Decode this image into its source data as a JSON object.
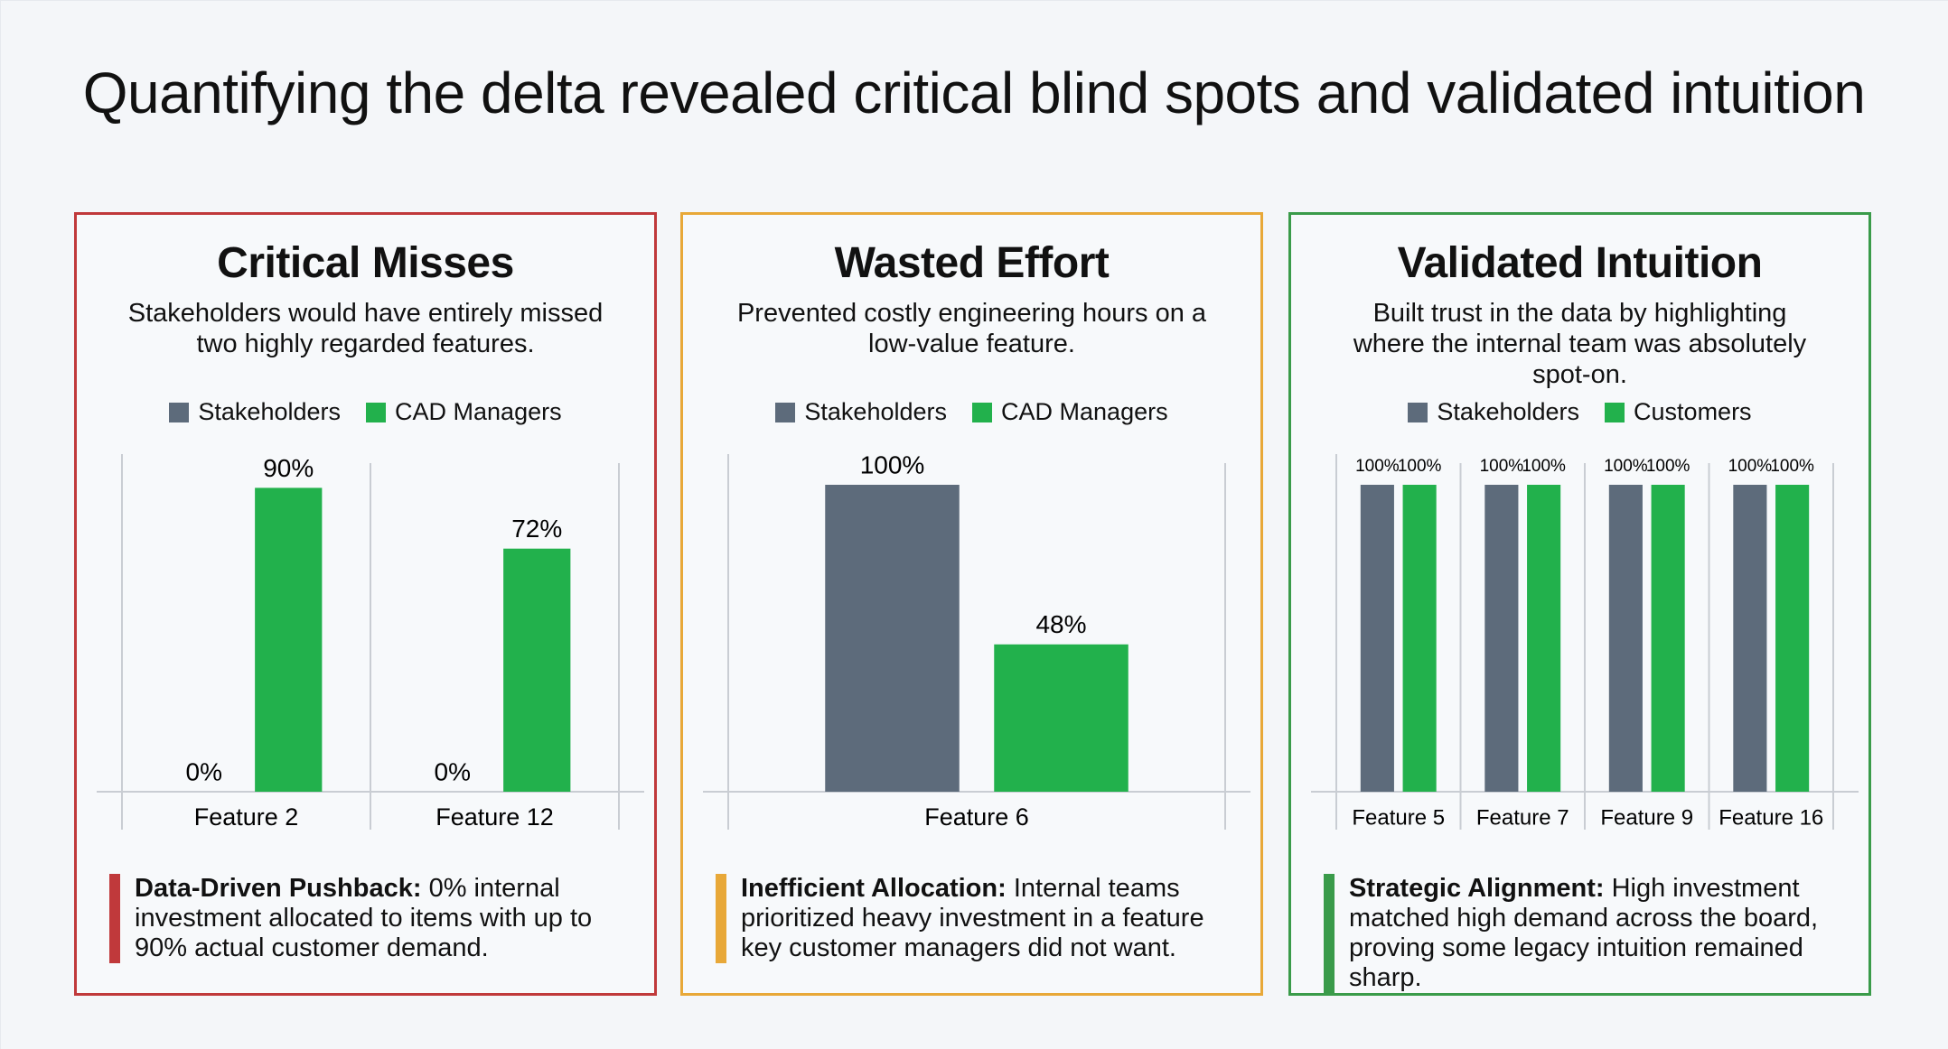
{
  "title": "Quantifying the delta revealed critical blind spots and validated intuition",
  "chart_data": [
    {
      "type": "bar",
      "title": "Critical Misses",
      "subtitle": "Stakeholders would have entirely missed two highly regarded features.",
      "accent": "#c0393b",
      "categories": [
        "Feature 2",
        "Feature 12"
      ],
      "series": [
        {
          "name": "Stakeholders",
          "color": "#5d6b7b",
          "values": [
            0,
            0
          ],
          "value_labels": [
            "0%",
            "0%"
          ]
        },
        {
          "name": "CAD Managers",
          "color": "#22b14c",
          "values": [
            90,
            72
          ],
          "value_labels": [
            "90%",
            "72%"
          ]
        }
      ],
      "ylim": [
        0,
        100
      ],
      "note": {
        "label": "Data-Driven Pushback:",
        "text": "0% internal investment allocated to items with up to 90% actual customer demand."
      }
    },
    {
      "type": "bar",
      "title": "Wasted Effort",
      "subtitle": "Prevented costly engineering hours on a low-value feature.",
      "accent": "#e8a838",
      "categories": [
        "Feature 6"
      ],
      "series": [
        {
          "name": "Stakeholders",
          "color": "#5d6b7b",
          "values": [
            100
          ],
          "value_labels": [
            "100%"
          ]
        },
        {
          "name": "CAD Managers",
          "color": "#22b14c",
          "values": [
            48
          ],
          "value_labels": [
            "48%"
          ]
        }
      ],
      "ylim": [
        0,
        110
      ],
      "note": {
        "label": "Inefficient Allocation:",
        "text": "Internal teams prioritized heavy investment in a feature key customer managers did not want."
      }
    },
    {
      "type": "bar",
      "title": "Validated Intuition",
      "subtitle": "Built trust in the data by highlighting where the internal team was absolutely spot-on.",
      "accent": "#3a9b4a",
      "categories": [
        "Feature 5",
        "Feature 7",
        "Feature 9",
        "Feature 16"
      ],
      "series": [
        {
          "name": "Stakeholders",
          "color": "#5d6b7b",
          "values": [
            100,
            100,
            100,
            100
          ],
          "value_labels": [
            "100%",
            "100%",
            "100%",
            "100%"
          ]
        },
        {
          "name": "Customers",
          "color": "#22b14c",
          "values": [
            100,
            100,
            100,
            100
          ],
          "value_labels": [
            "100%",
            "100%",
            "100%",
            "100%"
          ]
        }
      ],
      "ylim": [
        0,
        110
      ],
      "note": {
        "label": "Strategic Alignment:",
        "text": "High investment matched high demand across the board, proving some legacy intuition remained sharp."
      }
    }
  ]
}
